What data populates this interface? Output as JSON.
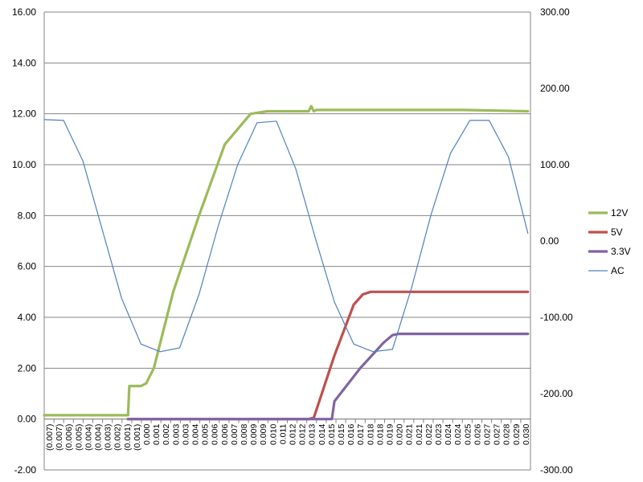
{
  "chart_data": {
    "type": "line",
    "title": "",
    "xlabel": "",
    "ylabel": "",
    "y2label": "",
    "x_tick_labels": [
      "(0.007)",
      "(0.007)",
      "(0.006)",
      "(0.005)",
      "(0.004)",
      "(0.004)",
      "(0.003)",
      "(0.002)",
      "(0.001)",
      "(0.001)",
      "0.000",
      "0.001",
      "0.002",
      "0.003",
      "0.003",
      "0.004",
      "0.005",
      "0.006",
      "0.006",
      "0.007",
      "0.008",
      "0.009",
      "0.009",
      "0.010",
      "0.011",
      "0.012",
      "0.012",
      "0.013",
      "0.014",
      "0.015",
      "0.015",
      "0.016",
      "0.017",
      "0.018",
      "0.018",
      "0.019",
      "0.020",
      "0.021",
      "0.021",
      "0.022",
      "0.023",
      "0.024",
      "0.024",
      "0.025",
      "0.026",
      "0.027",
      "0.027",
      "0.028",
      "0.029",
      "0.030"
    ],
    "ylim": [
      -2,
      16
    ],
    "y_ticks": [
      "-2.00",
      "0.00",
      "2.00",
      "4.00",
      "6.00",
      "8.00",
      "10.00",
      "12.00",
      "14.00",
      "16.00"
    ],
    "y_tick_values": [
      -2,
      0,
      2,
      4,
      6,
      8,
      10,
      12,
      14,
      16
    ],
    "y2lim": [
      -300,
      300
    ],
    "y2_ticks": [
      "-300.00",
      "-200.00",
      "-100.00",
      "0.00",
      "100.00",
      "200.00",
      "300.00"
    ],
    "y2_tick_values": [
      -300,
      -200,
      -100,
      0,
      100,
      200,
      300
    ],
    "grid": true,
    "legend_position": "right",
    "series": [
      {
        "name": "12V",
        "axis": "left",
        "color": "#9BBB59",
        "x": [
          -0.0075,
          -0.001,
          -0.0009,
          -0.0006,
          0.0,
          0.0004,
          0.001,
          0.0025,
          0.0045,
          0.0065,
          0.0085,
          0.0098,
          0.0102,
          0.013,
          0.0132,
          0.0134,
          0.0136,
          0.016,
          0.02,
          0.025,
          0.03
        ],
        "values": [
          0.15,
          0.15,
          1.3,
          1.3,
          1.3,
          1.4,
          2.0,
          5.0,
          8.0,
          10.8,
          12.0,
          12.1,
          12.1,
          12.1,
          12.3,
          12.1,
          12.15,
          12.15,
          12.15,
          12.15,
          12.1
        ]
      },
      {
        "name": "5V",
        "axis": "left",
        "color": "#C0504D",
        "x": [
          -0.001,
          0.013,
          0.0134,
          0.015,
          0.0165,
          0.0172,
          0.0178,
          0.02,
          0.025,
          0.03
        ],
        "values": [
          0.0,
          0.0,
          0.05,
          2.5,
          4.5,
          4.9,
          5.0,
          5.0,
          5.0,
          5.0
        ]
      },
      {
        "name": "3.3V",
        "axis": "left",
        "color": "#8064A2",
        "x": [
          -0.001,
          0.0148,
          0.015,
          0.017,
          0.0188,
          0.0195,
          0.02,
          0.025,
          0.03
        ],
        "values": [
          0.0,
          0.0,
          0.7,
          2.0,
          3.0,
          3.3,
          3.35,
          3.35,
          3.35
        ]
      },
      {
        "name": "AC",
        "axis": "right",
        "color": "#4F81BD",
        "x": [
          -0.0075,
          -0.006,
          -0.0045,
          -0.003,
          -0.0015,
          0.0,
          0.0015,
          0.003,
          0.0045,
          0.006,
          0.0075,
          0.009,
          0.0105,
          0.012,
          0.0135,
          0.015,
          0.0165,
          0.018,
          0.0195,
          0.021,
          0.0225,
          0.024,
          0.0255,
          0.027,
          0.0285,
          0.03
        ],
        "values": [
          159,
          158,
          105,
          15,
          -75,
          -135,
          -145,
          -140,
          -70,
          20,
          100,
          155,
          157,
          95,
          5,
          -80,
          -135,
          -145,
          -142,
          -60,
          35,
          115,
          158,
          158,
          110,
          10
        ]
      }
    ]
  }
}
